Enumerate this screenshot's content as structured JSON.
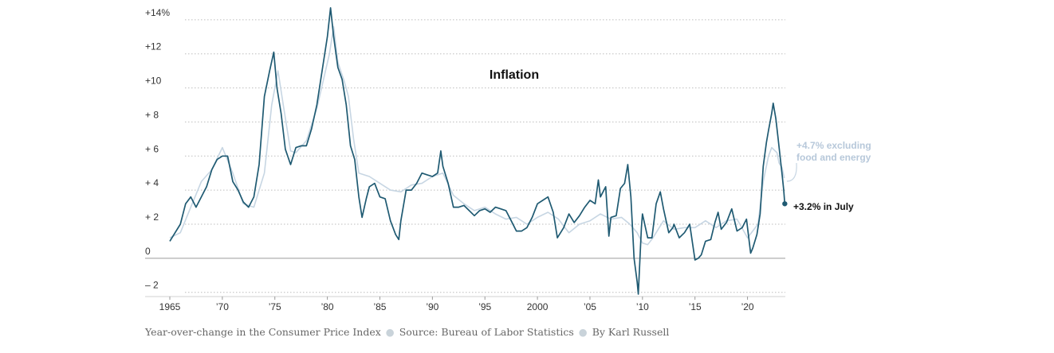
{
  "chart_data": {
    "type": "line",
    "title": "Inflation",
    "xlabel": "",
    "ylabel": "",
    "xlim": [
      1965,
      2023.6
    ],
    "ylim": [
      -2.2,
      14.6
    ],
    "grid": true,
    "y_ticks": [
      {
        "value": 14,
        "label": "+14%"
      },
      {
        "value": 12,
        "label": "+12"
      },
      {
        "value": 10,
        "label": "+10"
      },
      {
        "value": 8,
        "label": "+ 8"
      },
      {
        "value": 6,
        "label": "+ 6"
      },
      {
        "value": 4,
        "label": "+ 4"
      },
      {
        "value": 2,
        "label": "+ 2"
      },
      {
        "value": 0,
        "label": "0"
      },
      {
        "value": -2,
        "label": "– 2"
      }
    ],
    "x_ticks": [
      {
        "value": 1965,
        "label": "1965"
      },
      {
        "value": 1970,
        "label": "’70"
      },
      {
        "value": 1975,
        "label": "’75"
      },
      {
        "value": 1980,
        "label": "’80"
      },
      {
        "value": 1985,
        "label": "’85"
      },
      {
        "value": 1990,
        "label": "’90"
      },
      {
        "value": 1995,
        "label": "’95"
      },
      {
        "value": 2000,
        "label": "2000"
      },
      {
        "value": 2005,
        "label": "’05"
      },
      {
        "value": 2010,
        "label": "’10"
      },
      {
        "value": 2015,
        "label": "’15"
      },
      {
        "value": 2020,
        "label": "’20"
      }
    ],
    "series": [
      {
        "color": "#c7d6e3",
        "points": [
          [
            1965.0,
            1.2
          ],
          [
            1966.0,
            1.5
          ],
          [
            1967.0,
            3.0
          ],
          [
            1968.0,
            4.5
          ],
          [
            1969.0,
            5.2
          ],
          [
            1970.0,
            6.5
          ],
          [
            1971.0,
            5.0
          ],
          [
            1972.0,
            3.2
          ],
          [
            1973.0,
            3.0
          ],
          [
            1974.0,
            5.0
          ],
          [
            1974.7,
            9.0
          ],
          [
            1975.3,
            11.0
          ],
          [
            1975.8,
            9.0
          ],
          [
            1976.5,
            6.3
          ],
          [
            1977.0,
            6.2
          ],
          [
            1978.0,
            6.9
          ],
          [
            1979.0,
            8.8
          ],
          [
            1980.2,
            12.0
          ],
          [
            1980.6,
            13.6
          ],
          [
            1981.0,
            11.5
          ],
          [
            1981.6,
            10.4
          ],
          [
            1982.0,
            9.5
          ],
          [
            1982.5,
            7.0
          ],
          [
            1983.0,
            5.0
          ],
          [
            1984.0,
            4.8
          ],
          [
            1985.0,
            4.4
          ],
          [
            1986.0,
            4.0
          ],
          [
            1987.0,
            3.9
          ],
          [
            1988.0,
            4.3
          ],
          [
            1989.0,
            4.4
          ],
          [
            1990.0,
            4.8
          ],
          [
            1991.0,
            5.0
          ],
          [
            1992.0,
            3.7
          ],
          [
            1993.0,
            3.2
          ],
          [
            1994.0,
            2.8
          ],
          [
            1995.0,
            3.0
          ],
          [
            1996.0,
            2.6
          ],
          [
            1997.0,
            2.3
          ],
          [
            1998.0,
            2.4
          ],
          [
            1999.0,
            2.0
          ],
          [
            2000.0,
            2.4
          ],
          [
            2001.0,
            2.7
          ],
          [
            2002.0,
            2.3
          ],
          [
            2003.0,
            1.5
          ],
          [
            2004.0,
            2.0
          ],
          [
            2005.0,
            2.2
          ],
          [
            2006.0,
            2.6
          ],
          [
            2007.0,
            2.3
          ],
          [
            2008.0,
            2.4
          ],
          [
            2008.8,
            2.0
          ],
          [
            2009.5,
            1.5
          ],
          [
            2010.0,
            0.9
          ],
          [
            2010.5,
            0.8
          ],
          [
            2011.0,
            1.2
          ],
          [
            2012.0,
            2.2
          ],
          [
            2013.0,
            1.7
          ],
          [
            2014.0,
            1.8
          ],
          [
            2015.0,
            1.8
          ],
          [
            2016.0,
            2.2
          ],
          [
            2017.0,
            1.8
          ],
          [
            2018.0,
            2.2
          ],
          [
            2019.0,
            2.3
          ],
          [
            2020.0,
            1.2
          ],
          [
            2021.0,
            2.0
          ],
          [
            2021.5,
            4.5
          ],
          [
            2022.0,
            6.0
          ],
          [
            2022.3,
            6.5
          ],
          [
            2022.8,
            6.2
          ],
          [
            2023.0,
            5.6
          ],
          [
            2023.3,
            5.3
          ],
          [
            2023.5,
            4.7
          ]
        ]
      },
      {
        "color": "#1f5a72",
        "points": [
          [
            1965.0,
            1.0
          ],
          [
            1965.5,
            1.5
          ],
          [
            1966.0,
            2.0
          ],
          [
            1966.5,
            3.2
          ],
          [
            1967.0,
            3.6
          ],
          [
            1967.5,
            3.0
          ],
          [
            1968.0,
            3.6
          ],
          [
            1968.5,
            4.2
          ],
          [
            1969.0,
            5.2
          ],
          [
            1969.5,
            5.8
          ],
          [
            1970.0,
            6.0
          ],
          [
            1970.5,
            6.0
          ],
          [
            1971.0,
            4.5
          ],
          [
            1971.5,
            4.0
          ],
          [
            1972.0,
            3.3
          ],
          [
            1972.5,
            3.0
          ],
          [
            1973.0,
            3.6
          ],
          [
            1973.5,
            5.5
          ],
          [
            1974.0,
            9.5
          ],
          [
            1974.5,
            11.0
          ],
          [
            1974.9,
            12.1
          ],
          [
            1975.2,
            10.0
          ],
          [
            1975.6,
            8.5
          ],
          [
            1976.0,
            6.4
          ],
          [
            1976.5,
            5.5
          ],
          [
            1977.0,
            6.5
          ],
          [
            1977.5,
            6.6
          ],
          [
            1978.0,
            6.6
          ],
          [
            1978.5,
            7.6
          ],
          [
            1979.0,
            9.0
          ],
          [
            1979.5,
            11.0
          ],
          [
            1980.0,
            13.0
          ],
          [
            1980.3,
            14.7
          ],
          [
            1980.6,
            13.0
          ],
          [
            1981.0,
            11.2
          ],
          [
            1981.4,
            10.5
          ],
          [
            1981.8,
            9.0
          ],
          [
            1982.2,
            6.6
          ],
          [
            1982.6,
            5.8
          ],
          [
            1983.0,
            3.6
          ],
          [
            1983.3,
            2.4
          ],
          [
            1983.7,
            3.5
          ],
          [
            1984.0,
            4.2
          ],
          [
            1984.5,
            4.4
          ],
          [
            1985.0,
            3.6
          ],
          [
            1985.5,
            3.5
          ],
          [
            1986.0,
            2.2
          ],
          [
            1986.5,
            1.4
          ],
          [
            1986.8,
            1.1
          ],
          [
            1987.0,
            2.2
          ],
          [
            1987.5,
            4.0
          ],
          [
            1988.0,
            4.0
          ],
          [
            1988.5,
            4.4
          ],
          [
            1989.0,
            5.0
          ],
          [
            1989.5,
            4.9
          ],
          [
            1990.0,
            4.8
          ],
          [
            1990.5,
            5.0
          ],
          [
            1990.8,
            6.3
          ],
          [
            1991.0,
            5.4
          ],
          [
            1991.5,
            4.4
          ],
          [
            1992.0,
            3.0
          ],
          [
            1992.5,
            3.0
          ],
          [
            1993.0,
            3.1
          ],
          [
            1993.5,
            2.8
          ],
          [
            1994.0,
            2.5
          ],
          [
            1994.5,
            2.8
          ],
          [
            1995.0,
            2.9
          ],
          [
            1995.5,
            2.7
          ],
          [
            1996.0,
            3.0
          ],
          [
            1996.5,
            2.9
          ],
          [
            1997.0,
            2.8
          ],
          [
            1997.5,
            2.2
          ],
          [
            1998.0,
            1.6
          ],
          [
            1998.5,
            1.6
          ],
          [
            1999.0,
            1.8
          ],
          [
            1999.5,
            2.4
          ],
          [
            2000.0,
            3.2
          ],
          [
            2000.5,
            3.4
          ],
          [
            2001.0,
            3.6
          ],
          [
            2001.5,
            2.7
          ],
          [
            2001.9,
            1.2
          ],
          [
            2002.2,
            1.5
          ],
          [
            2002.5,
            1.8
          ],
          [
            2003.0,
            2.6
          ],
          [
            2003.5,
            2.1
          ],
          [
            2004.0,
            2.5
          ],
          [
            2004.5,
            3.0
          ],
          [
            2005.0,
            3.4
          ],
          [
            2005.5,
            3.2
          ],
          [
            2005.8,
            4.6
          ],
          [
            2006.0,
            3.6
          ],
          [
            2006.5,
            4.2
          ],
          [
            2006.8,
            1.3
          ],
          [
            2007.0,
            2.4
          ],
          [
            2007.5,
            2.5
          ],
          [
            2007.9,
            4.1
          ],
          [
            2008.3,
            4.4
          ],
          [
            2008.6,
            5.5
          ],
          [
            2008.9,
            3.6
          ],
          [
            2009.2,
            0.0
          ],
          [
            2009.5,
            -1.4
          ],
          [
            2009.6,
            -2.1
          ],
          [
            2009.9,
            1.8
          ],
          [
            2010.0,
            2.6
          ],
          [
            2010.5,
            1.2
          ],
          [
            2010.9,
            1.2
          ],
          [
            2011.3,
            3.2
          ],
          [
            2011.7,
            3.9
          ],
          [
            2012.0,
            2.9
          ],
          [
            2012.5,
            1.5
          ],
          [
            2012.9,
            1.8
          ],
          [
            2013.0,
            2.0
          ],
          [
            2013.5,
            1.2
          ],
          [
            2014.0,
            1.5
          ],
          [
            2014.5,
            2.0
          ],
          [
            2015.0,
            -0.1
          ],
          [
            2015.3,
            0.0
          ],
          [
            2015.6,
            0.2
          ],
          [
            2016.0,
            1.0
          ],
          [
            2016.5,
            1.1
          ],
          [
            2016.9,
            2.1
          ],
          [
            2017.2,
            2.7
          ],
          [
            2017.5,
            1.7
          ],
          [
            2018.0,
            2.1
          ],
          [
            2018.5,
            2.9
          ],
          [
            2019.0,
            1.6
          ],
          [
            2019.5,
            1.8
          ],
          [
            2019.9,
            2.3
          ],
          [
            2020.3,
            0.3
          ],
          [
            2020.5,
            0.6
          ],
          [
            2020.9,
            1.4
          ],
          [
            2021.2,
            2.6
          ],
          [
            2021.5,
            5.4
          ],
          [
            2021.8,
            6.8
          ],
          [
            2022.0,
            7.5
          ],
          [
            2022.3,
            8.5
          ],
          [
            2022.45,
            9.1
          ],
          [
            2022.7,
            8.2
          ],
          [
            2022.9,
            7.1
          ],
          [
            2023.1,
            6.0
          ],
          [
            2023.3,
            4.9
          ],
          [
            2023.45,
            4.0
          ],
          [
            2023.55,
            3.2
          ]
        ]
      }
    ],
    "annotations": [
      {
        "text_line1": "+4.7% excluding",
        "text_line2": "food and energy",
        "color": "#b7c8da"
      },
      {
        "text": "+3.2% in July",
        "color": "#111111"
      }
    ]
  },
  "footer": {
    "caption": "Year-over-change in the Consumer Price Index",
    "source": "Source: Bureau of Labor Statistics",
    "byline": "By Karl Russell"
  }
}
